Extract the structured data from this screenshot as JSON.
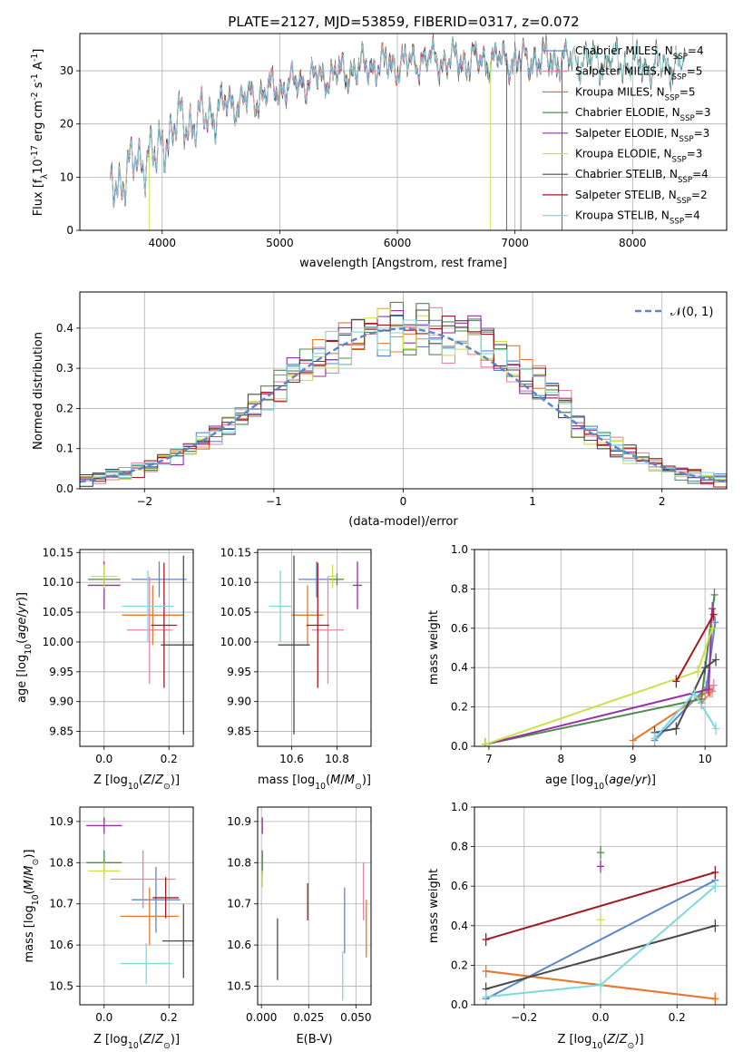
{
  "title": "PLATE=2127, MJD=53859, FIBERID=0317, z=0.072",
  "colors": {
    "Chabrier MILES": "#5b87c9",
    "Salpeter MILES": "#e9849c",
    "Kroupa MILES": "#e8782d",
    "Chabrier ELODIE": "#4e8a4e",
    "Salpeter ELODIE": "#9a2ea8",
    "Kroupa ELODIE": "#c8e24a",
    "Chabrier STELIB": "#4a4a4a",
    "Salpeter STELIB": "#a3181f",
    "Kroupa STELIB": "#7dd8dc"
  },
  "legend": [
    {
      "name": "Chabrier MILES",
      "label": "Chabrier MILES, N",
      "sub": "SSP",
      "val": "=4"
    },
    {
      "name": "Salpeter MILES",
      "label": "Salpeter MILES, N",
      "sub": "SSP",
      "val": "=5"
    },
    {
      "name": "Kroupa MILES",
      "label": "Kroupa MILES, N",
      "sub": "SSP",
      "val": "=5"
    },
    {
      "name": "Chabrier ELODIE",
      "label": "Chabrier ELODIE, N",
      "sub": "SSP",
      "val": "=3"
    },
    {
      "name": "Salpeter ELODIE",
      "label": "Salpeter ELODIE, N",
      "sub": "SSP",
      "val": "=3"
    },
    {
      "name": "Kroupa ELODIE",
      "label": "Kroupa ELODIE, N",
      "sub": "SSP",
      "val": "=3"
    },
    {
      "name": "Chabrier STELIB",
      "label": "Chabrier STELIB, N",
      "sub": "SSP",
      "val": "=4"
    },
    {
      "name": "Salpeter STELIB",
      "label": "Salpeter STELIB, N",
      "sub": "SSP",
      "val": "=2"
    },
    {
      "name": "Kroupa STELIB",
      "label": "Kroupa STELIB, N",
      "sub": "SSP",
      "val": "=4"
    }
  ],
  "chart_data": [
    {
      "id": "spectrum",
      "type": "line",
      "xlabel": "wavelength [Angstrom, rest frame]",
      "ylabel_parts": [
        "Flux [f",
        "λ",
        "10",
        "-17",
        " erg cm",
        "-2",
        " s",
        "-1",
        " A",
        "-1",
        "]"
      ],
      "xlim": [
        3300,
        8800
      ],
      "ylim": [
        0,
        37
      ],
      "xticks": [
        4000,
        5000,
        6000,
        7000,
        8000
      ],
      "yticks": [
        0,
        10,
        20,
        30
      ],
      "anchors_x": [
        3560,
        3620,
        3700,
        3800,
        3900,
        3950,
        4000,
        4100,
        4200,
        4300,
        4400,
        4600,
        4800,
        5000,
        5200,
        5400,
        5600,
        5800,
        6000,
        6200,
        6400,
        6600,
        6800,
        7000,
        7200,
        7400,
        7600,
        7800,
        8000,
        8200,
        8450
      ],
      "anchors_y": [
        7,
        9,
        11,
        13,
        15,
        12,
        17,
        19,
        21,
        20,
        22,
        24,
        25,
        27,
        28,
        29,
        30,
        31,
        31,
        32,
        32,
        32,
        32,
        32,
        32,
        32,
        32,
        32,
        31,
        31,
        31
      ],
      "drops": [
        {
          "series": "Kroupa ELODIE",
          "x": 6790
        },
        {
          "series": "Chabrier STELIB",
          "x": 6930
        },
        {
          "series": "Chabrier STELIB",
          "x": 7050
        },
        {
          "series": "Salpeter STELIB",
          "x": 7400
        },
        {
          "series": "Kroupa ELODIE",
          "x": 3890
        }
      ]
    },
    {
      "id": "residuals",
      "type": "histogram",
      "xlabel": "(data-model)/error",
      "ylabel": "Normed distribution",
      "xlim": [
        -2.5,
        2.5
      ],
      "ylim": [
        0,
        0.49
      ],
      "xticks": [
        -2,
        -1,
        0,
        1,
        2
      ],
      "xtick_labels": [
        "−2",
        "−1",
        "0",
        "1",
        "2"
      ],
      "yticks": [
        0.0,
        0.1,
        0.2,
        0.3,
        0.4
      ],
      "bin_width": 0.1,
      "curve_label": "N(0,1)",
      "curve_color": "#5b87c9"
    },
    {
      "id": "age-vs-Z",
      "type": "scatter",
      "xlabel": "Z [log10(Z/Z⊙)]",
      "ylabel": "age  [log10(age/yr)]",
      "xlim": [
        -0.075,
        0.275
      ],
      "ylim": [
        9.825,
        10.155
      ],
      "xticks": [
        0.0,
        0.2
      ],
      "xtick_labels": [
        "0.0",
        "0.2"
      ],
      "yticks": [
        9.85,
        9.9,
        9.95,
        10.0,
        10.05,
        10.1,
        10.15
      ],
      "points": [
        {
          "series": "Chabrier MILES",
          "x": 0.17,
          "y": 10.105,
          "xerr": 0.085,
          "yerr": 0.03
        },
        {
          "series": "Salpeter MILES",
          "x": 0.14,
          "y": 10.02,
          "xerr": 0.07,
          "yerr": 0.09
        },
        {
          "series": "Kroupa MILES",
          "x": 0.15,
          "y": 10.045,
          "xerr": 0.095,
          "yerr": 0.05
        },
        {
          "series": "Chabrier ELODIE",
          "x": 0.0,
          "y": 10.105,
          "xerr": 0.05,
          "yerr": 0.01
        },
        {
          "series": "Salpeter ELODIE",
          "x": 0.0,
          "y": 10.095,
          "xerr": 0.05,
          "yerr": 0.04
        },
        {
          "series": "Kroupa ELODIE",
          "x": 0.0,
          "y": 10.11,
          "xerr": 0.04,
          "yerr": 0.02
        },
        {
          "series": "Chabrier STELIB",
          "x": 0.245,
          "y": 9.995,
          "xerr": 0.07,
          "yerr": 0.15
        },
        {
          "series": "Salpeter STELIB",
          "x": 0.185,
          "y": 10.028,
          "xerr": 0.04,
          "yerr": 0.105
        },
        {
          "series": "Kroupa STELIB",
          "x": 0.135,
          "y": 10.06,
          "xerr": 0.08,
          "yerr": 0.06
        }
      ]
    },
    {
      "id": "age-vs-mass",
      "type": "scatter",
      "xlabel": "mass [log10(M/M⊙)]",
      "ylabel": "",
      "xlim": [
        10.45,
        10.95
      ],
      "ylim": [
        9.825,
        10.155
      ],
      "xticks": [
        10.6,
        10.8
      ],
      "xtick_labels": [
        "10.6",
        "10.8"
      ],
      "yticks": [
        9.85,
        9.9,
        9.95,
        10.0,
        10.05,
        10.1,
        10.15
      ],
      "points": [
        {
          "series": "Chabrier MILES",
          "x": 10.71,
          "y": 10.105,
          "xerr": 0.08,
          "yerr": 0.03
        },
        {
          "series": "Salpeter MILES",
          "x": 10.76,
          "y": 10.02,
          "xerr": 0.07,
          "yerr": 0.09
        },
        {
          "series": "Kroupa MILES",
          "x": 10.67,
          "y": 10.045,
          "xerr": 0.07,
          "yerr": 0.05
        },
        {
          "series": "Chabrier ELODIE",
          "x": 10.8,
          "y": 10.105,
          "xerr": 0.03,
          "yerr": 0.01
        },
        {
          "series": "Salpeter ELODIE",
          "x": 10.89,
          "y": 10.095,
          "xerr": 0.02,
          "yerr": 0.04
        },
        {
          "series": "Kroupa ELODIE",
          "x": 10.78,
          "y": 10.11,
          "xerr": 0.02,
          "yerr": 0.02
        },
        {
          "series": "Chabrier STELIB",
          "x": 10.61,
          "y": 9.995,
          "xerr": 0.07,
          "yerr": 0.15
        },
        {
          "series": "Salpeter STELIB",
          "x": 10.715,
          "y": 10.028,
          "xerr": 0.05,
          "yerr": 0.105
        },
        {
          "series": "Kroupa STELIB",
          "x": 10.55,
          "y": 10.06,
          "xerr": 0.05,
          "yerr": 0.06
        }
      ]
    },
    {
      "id": "weight-vs-age",
      "type": "line",
      "xlabel": "age  [log10(age/yr)]",
      "ylabel": "mass weight",
      "xlim": [
        6.8,
        10.3
      ],
      "ylim": [
        0,
        1.0
      ],
      "xticks": [
        7,
        8,
        9,
        10
      ],
      "xtick_labels": [
        "7",
        "8",
        "9",
        "10"
      ],
      "yticks": [
        0.0,
        0.2,
        0.4,
        0.6,
        0.8,
        1.0
      ],
      "series": [
        {
          "name": "Chabrier MILES",
          "x": [
            9.3,
            10.02,
            10.14
          ],
          "y": [
            0.03,
            0.3,
            0.63
          ]
        },
        {
          "name": "Salpeter MILES",
          "x": [
            9.95,
            10.1,
            10.12
          ],
          "y": [
            0.22,
            0.28,
            0.31
          ]
        },
        {
          "name": "Kroupa MILES",
          "x": [
            9.0,
            10.0,
            10.07
          ],
          "y": [
            0.03,
            0.27,
            0.28
          ]
        },
        {
          "name": "Chabrier ELODIE",
          "x": [
            6.95,
            9.95,
            10.13
          ],
          "y": [
            0.01,
            0.24,
            0.77
          ]
        },
        {
          "name": "Salpeter ELODIE",
          "x": [
            6.95,
            10.05,
            10.1
          ],
          "y": [
            0.01,
            0.29,
            0.7
          ]
        },
        {
          "name": "Kroupa ELODIE",
          "x": [
            6.95,
            9.9,
            10.1
          ],
          "y": [
            0.01,
            0.38,
            0.6
          ]
        },
        {
          "name": "Chabrier STELIB",
          "x": [
            9.3,
            9.6,
            10.0,
            10.15
          ],
          "y": [
            0.07,
            0.09,
            0.4,
            0.44
          ]
        },
        {
          "name": "Salpeter STELIB",
          "x": [
            9.6,
            10.12
          ],
          "y": [
            0.33,
            0.67
          ]
        },
        {
          "name": "Kroupa STELIB",
          "x": [
            9.3,
            9.85,
            10.15
          ],
          "y": [
            0.04,
            0.27,
            0.09
          ]
        }
      ]
    },
    {
      "id": "mass-vs-Z",
      "type": "scatter",
      "xlabel": "Z [log10(Z/Z⊙)]",
      "ylabel": "mass [log10(M/M⊙)]",
      "xlim": [
        -0.075,
        0.275
      ],
      "ylim": [
        10.455,
        10.935
      ],
      "xticks": [
        0.0,
        0.2
      ],
      "xtick_labels": [
        "0.0",
        "0.2"
      ],
      "yticks": [
        10.5,
        10.6,
        10.7,
        10.8,
        10.9
      ],
      "points": [
        {
          "series": "Chabrier MILES",
          "x": 0.16,
          "y": 10.71,
          "xerr": 0.075,
          "yerr": 0.08
        },
        {
          "series": "Salpeter MILES",
          "x": 0.12,
          "y": 10.76,
          "xerr": 0.1,
          "yerr": 0.07
        },
        {
          "series": "Kroupa MILES",
          "x": 0.14,
          "y": 10.67,
          "xerr": 0.09,
          "yerr": 0.07
        },
        {
          "series": "Chabrier ELODIE",
          "x": 0.0,
          "y": 10.8,
          "xerr": 0.055,
          "yerr": 0.03
        },
        {
          "series": "Salpeter ELODIE",
          "x": 0.0,
          "y": 10.89,
          "xerr": 0.055,
          "yerr": 0.02
        },
        {
          "series": "Kroupa ELODIE",
          "x": 0.0,
          "y": 10.78,
          "xerr": 0.05,
          "yerr": 0.02
        },
        {
          "series": "Chabrier STELIB",
          "x": 0.245,
          "y": 10.61,
          "xerr": 0.065,
          "yerr": 0.09
        },
        {
          "series": "Salpeter STELIB",
          "x": 0.19,
          "y": 10.715,
          "xerr": 0.04,
          "yerr": 0.05
        },
        {
          "series": "Kroupa STELIB",
          "x": 0.13,
          "y": 10.555,
          "xerr": 0.08,
          "yerr": 0.05
        }
      ]
    },
    {
      "id": "mass-vs-EBV",
      "type": "scatter",
      "xlabel": "E(B-V)",
      "ylabel": "",
      "xlim": [
        -0.002,
        0.058
      ],
      "ylim": [
        10.455,
        10.935
      ],
      "xticks": [
        0.0,
        0.025,
        0.05
      ],
      "xtick_labels": [
        "0.000",
        "0.025",
        "0.050"
      ],
      "yticks": [
        10.5,
        10.6,
        10.7,
        10.8,
        10.9
      ],
      "points": [
        {
          "series": "Chabrier MILES",
          "x": 0.044,
          "y": 10.66,
          "xerr": 0,
          "yerr": 0.08
        },
        {
          "series": "Salpeter MILES",
          "x": 0.054,
          "y": 10.73,
          "xerr": 0,
          "yerr": 0.07
        },
        {
          "series": "Kroupa MILES",
          "x": 0.0555,
          "y": 10.64,
          "xerr": 0,
          "yerr": 0.07
        },
        {
          "series": "Chabrier ELODIE",
          "x": 0.0005,
          "y": 10.8,
          "xerr": 0,
          "yerr": 0.03
        },
        {
          "series": "Salpeter ELODIE",
          "x": 0.0005,
          "y": 10.89,
          "xerr": 0,
          "yerr": 0.02
        },
        {
          "series": "Kroupa ELODIE",
          "x": 0.0005,
          "y": 10.76,
          "xerr": 0,
          "yerr": 0.02
        },
        {
          "series": "Chabrier STELIB",
          "x": 0.0085,
          "y": 10.59,
          "xerr": 0,
          "yerr": 0.075
        },
        {
          "series": "Salpeter STELIB",
          "x": 0.0245,
          "y": 10.705,
          "xerr": 0,
          "yerr": 0.045
        },
        {
          "series": "Kroupa STELIB",
          "x": 0.043,
          "y": 10.525,
          "xerr": 0,
          "yerr": 0.06
        }
      ]
    },
    {
      "id": "weight-vs-Z",
      "type": "line",
      "xlabel": "Z [log10(Z/Z⊙)]",
      "ylabel": "mass weight",
      "xlim": [
        -0.33,
        0.33
      ],
      "ylim": [
        0,
        1.0
      ],
      "xticks": [
        -0.2,
        0.0,
        0.2
      ],
      "xtick_labels": [
        "−0.2",
        "0.0",
        "0.2"
      ],
      "yticks": [
        0.0,
        0.2,
        0.4,
        0.6,
        0.8,
        1.0
      ],
      "series": [
        {
          "name": "Chabrier MILES",
          "x": [
            -0.3,
            0.3
          ],
          "y": [
            0.03,
            0.63
          ]
        },
        {
          "name": "Salpeter MILES",
          "x": [
            -0.3,
            0.3
          ],
          "y": [
            0.17,
            0.03
          ]
        },
        {
          "name": "Kroupa MILES",
          "x": [
            -0.3,
            0.3
          ],
          "y": [
            0.17,
            0.03
          ]
        },
        {
          "name": "Chabrier ELODIE",
          "x": [
            0.0
          ],
          "y": [
            0.77
          ]
        },
        {
          "name": "Salpeter ELODIE",
          "x": [
            0.0
          ],
          "y": [
            0.7
          ]
        },
        {
          "name": "Kroupa ELODIE",
          "x": [
            0.0
          ],
          "y": [
            0.43
          ]
        },
        {
          "name": "Chabrier STELIB",
          "x": [
            -0.3,
            0.3
          ],
          "y": [
            0.08,
            0.4
          ]
        },
        {
          "name": "Salpeter STELIB",
          "x": [
            -0.3,
            0.3
          ],
          "y": [
            0.33,
            0.67
          ]
        },
        {
          "name": "Kroupa STELIB",
          "x": [
            -0.3,
            0.0,
            0.3
          ],
          "y": [
            0.04,
            0.1,
            0.6
          ]
        }
      ]
    }
  ]
}
